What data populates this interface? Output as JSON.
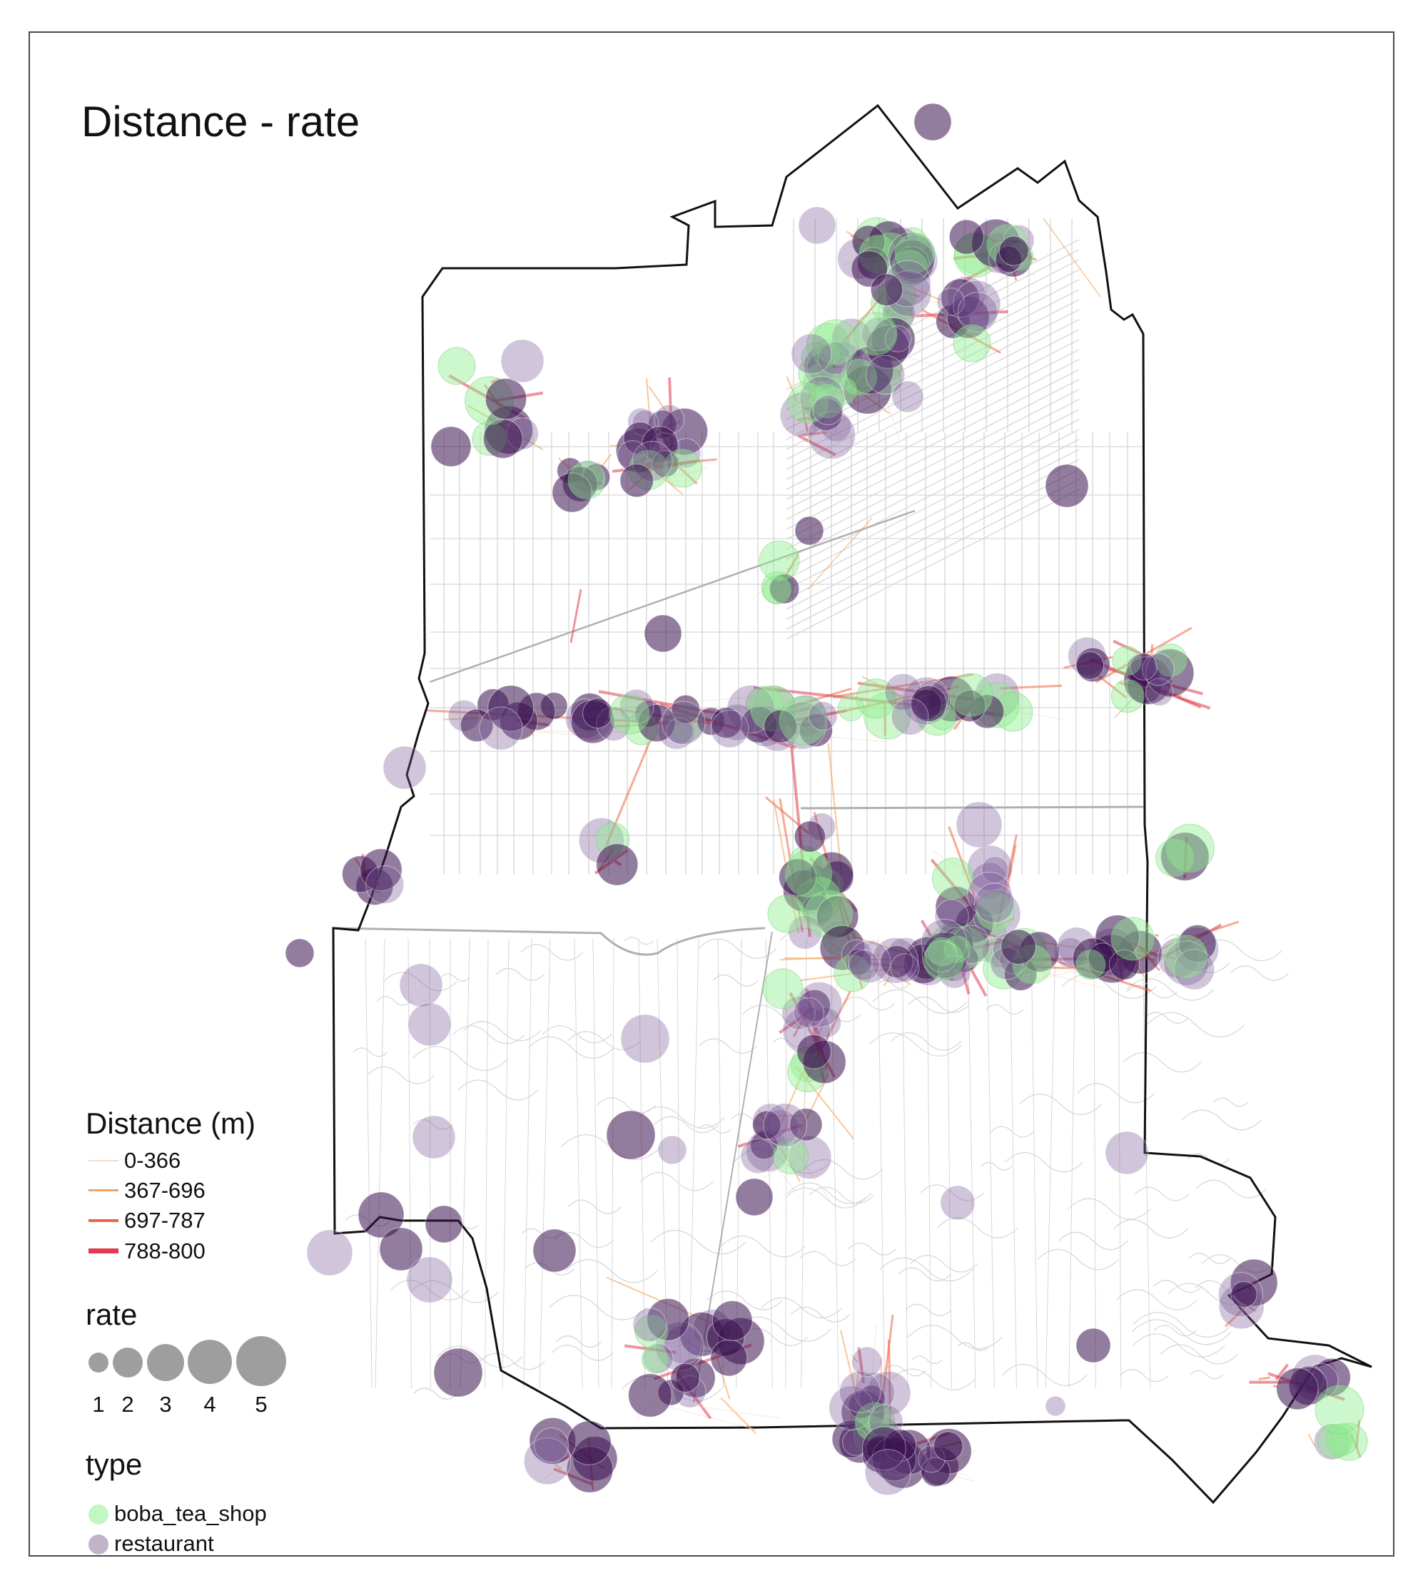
{
  "title": "Distance - rate",
  "legend": {
    "distance": {
      "title": "Distance (m)",
      "classes": [
        {
          "label": "0-366",
          "color": "#f8dcc2"
        },
        {
          "label": "367-696",
          "color": "#f4a259"
        },
        {
          "label": "697-787",
          "color": "#f06443"
        },
        {
          "label": "788-800",
          "color": "#e03c4f"
        }
      ]
    },
    "rate": {
      "title": "rate",
      "values": [
        "1",
        "2",
        "3",
        "4",
        "5"
      ],
      "color": "#9e9e9e"
    },
    "type": {
      "title": "type",
      "items": [
        {
          "label": "boba_tea_shop",
          "color": "#90ee90"
        },
        {
          "label": "restaurant",
          "color": "#4b2466"
        }
      ]
    }
  },
  "colors": {
    "boundary": "#111111",
    "streets": "#d6d6d6",
    "highway": "#b0b0b0",
    "boba": "#90ee90",
    "restaurant_light": "#b9a6c7",
    "restaurant_dark": "#3b1250"
  }
}
